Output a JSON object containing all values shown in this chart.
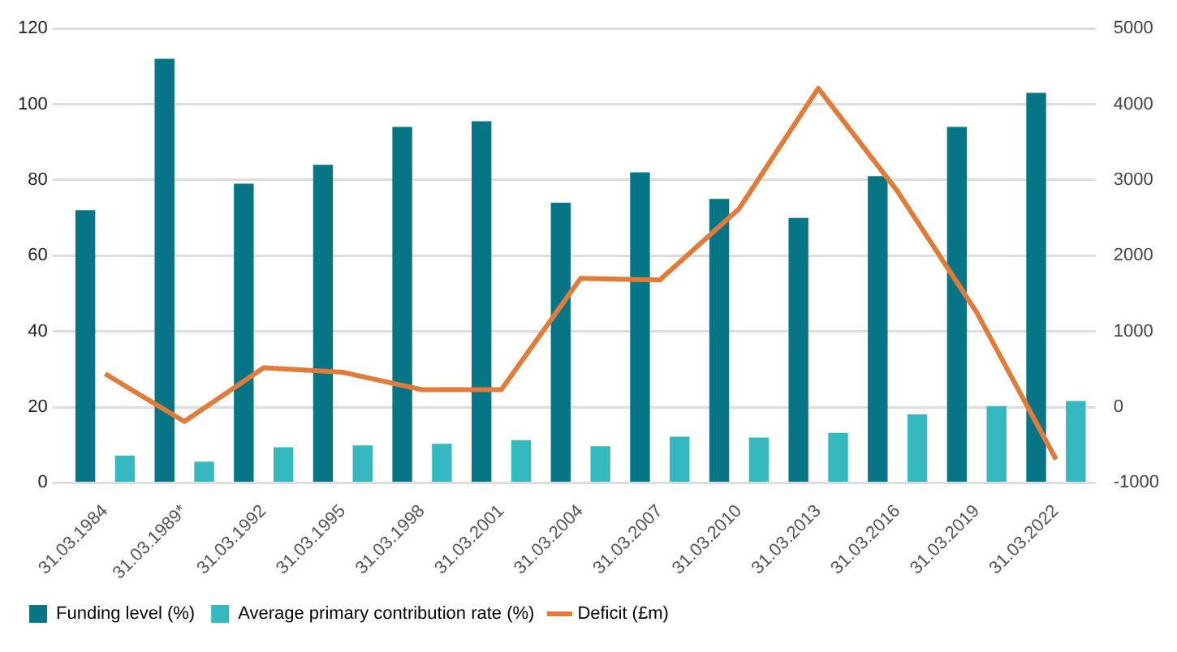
{
  "chart_data": {
    "type": "bar",
    "categories": [
      "31.03.1984",
      "31.03.1989*",
      "31.03.1992",
      "31.03.1995",
      "31.03.1998",
      "31.03.2001",
      "31.03.2004",
      "31.03.2007",
      "31.03.2010",
      "31.03.2013",
      "31.03.2016",
      "31.03.2019",
      "31.03.2022"
    ],
    "series": [
      {
        "name": "Funding level (%)",
        "color": "#087587",
        "values": [
          72,
          112,
          79,
          84,
          94,
          95.5,
          74,
          82,
          75,
          70,
          81,
          94,
          103
        ]
      },
      {
        "name": "Average primary contribution rate (%)",
        "color": "#36b8c0",
        "values": [
          7.2,
          5.6,
          9.4,
          9.9,
          10.3,
          11.3,
          9.7,
          12.2,
          12,
          13.2,
          18.1,
          20.3,
          21.6
        ]
      },
      {
        "name": "Deficit (£m)",
        "type": "line",
        "axis": "y2",
        "color": "#e07b39",
        "values": [
          440,
          -190,
          520,
          460,
          230,
          230,
          1700,
          1680,
          2620,
          4210,
          2850,
          1250,
          -690
        ]
      }
    ],
    "ylim": [
      0,
      120
    ],
    "yticks": [
      0,
      20,
      40,
      60,
      80,
      100,
      120
    ],
    "y2lim": [
      -1000,
      5000
    ],
    "y2ticks": [
      -1000,
      0,
      1000,
      2000,
      3000,
      4000,
      5000
    ],
    "grid": "y",
    "legend": "bottom",
    "marker": "none"
  }
}
